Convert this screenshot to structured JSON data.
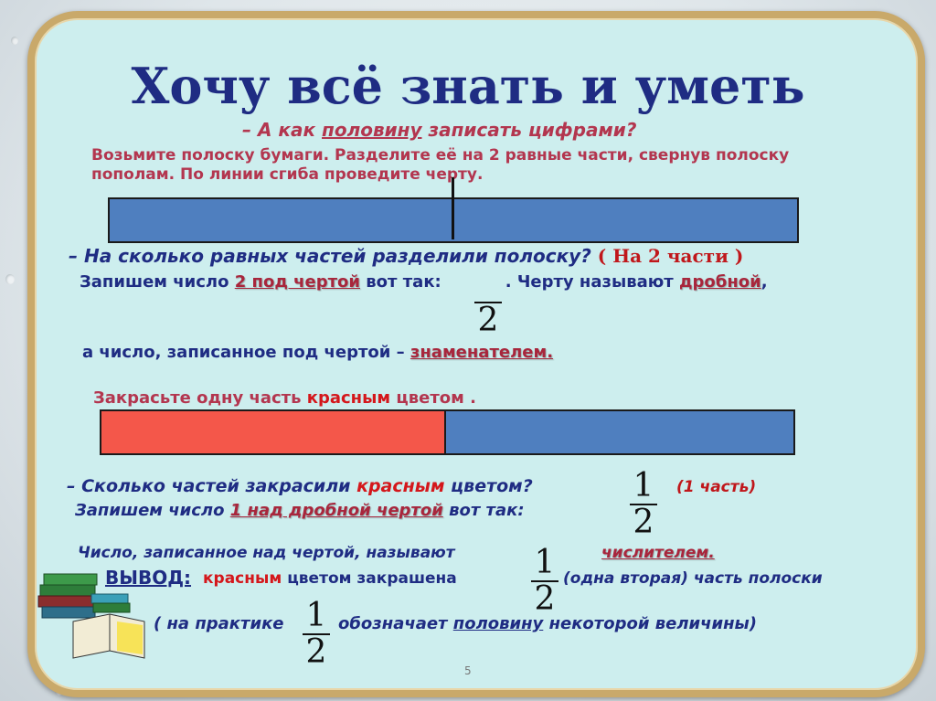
{
  "title": "Хочу всё знать и уметь",
  "q1": {
    "pre": "– А как ",
    "u": "половину",
    "post": " записать цифрами?"
  },
  "instruction": "Возьмите полоску бумаги. Разделите её на 2 равные части, свернув полоску пополам. По линии сгиба проведите черту.",
  "q2": {
    "text": "– На сколько равных частей разделили полоску? ",
    "answer": "( На 2 части )"
  },
  "line3": {
    "pre": "Запишем число ",
    "hl": "2 под чертой",
    "mid": " вот так:",
    "mid2": ".  Черту называют ",
    "hl2": "дробной",
    "post": ","
  },
  "line4": {
    "pre": "а  число, записанное под чертой – ",
    "hl": "знаменателем."
  },
  "line5": {
    "pre": "Закрасьте одну часть ",
    "red": "красным",
    "post": " цветом ."
  },
  "q3": {
    "pre": "– Сколько частей  закрасили ",
    "red": "красным",
    "post": " цветом?"
  },
  "answer3": "(1 часть)",
  "line6": {
    "pre": "Запишем число ",
    "hl": "1 над дробной чертой",
    "post": " вот так:"
  },
  "line7": {
    "pre": "Число, записанное над чертой, называют",
    "hl": "числителем."
  },
  "line8": {
    "label": "ВЫВОД:",
    "red": "красным",
    "post": " цветом закрашена",
    "after": "(одна вторая) часть полоски"
  },
  "line9": {
    "pre": "( на практике",
    "post1": "обозначает ",
    "u": "половину",
    "post2": " некоторой величины)"
  },
  "fractions": {
    "one": "1",
    "two": "2"
  },
  "page_number": "5",
  "colors": {
    "title": "#1f2c83",
    "accent": "#b3364f",
    "red_strip": "#f4574a",
    "blue_strip": "#4f7fbf",
    "frame": "#c9a96a",
    "panel": "#cdeeee"
  },
  "icons": {
    "books": "books-icon"
  }
}
